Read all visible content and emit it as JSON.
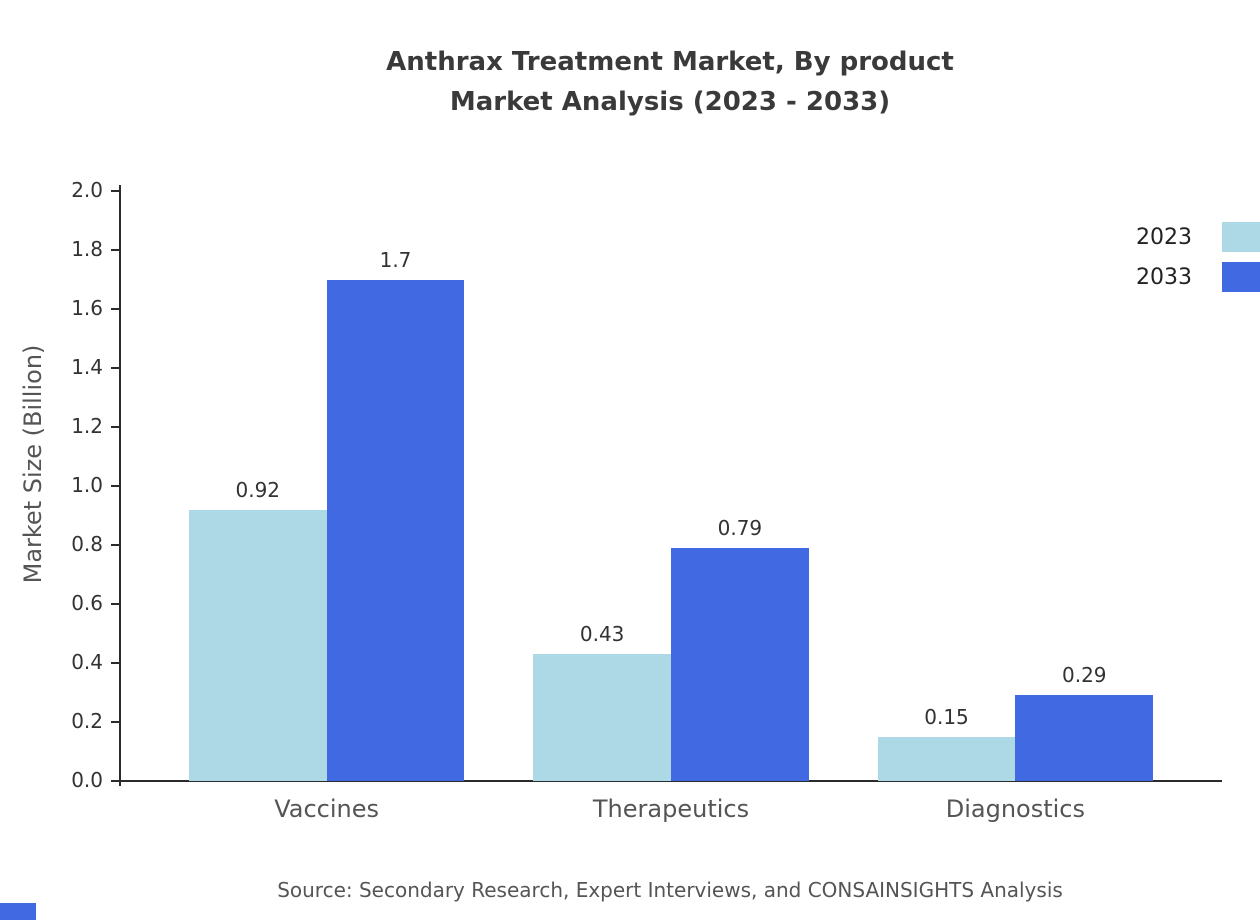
{
  "chart_data": {
    "type": "bar",
    "title": "Anthrax Treatment Market, By product Market Analysis (2023 - 2033)",
    "title_lines": [
      "Anthrax Treatment Market, By product",
      "Market Analysis (2023 - 2033)"
    ],
    "categories": [
      "Vaccines",
      "Therapeutics",
      "Diagnostics"
    ],
    "series": [
      {
        "name": "2023",
        "color": "#add8e6",
        "values": [
          0.92,
          0.43,
          0.15
        ],
        "labels": [
          "0.92",
          "0.43",
          "0.15"
        ]
      },
      {
        "name": "2033",
        "color": "#4169e1",
        "values": [
          1.7,
          0.79,
          0.29
        ],
        "labels": [
          "1.7",
          "0.79",
          "0.29"
        ]
      }
    ],
    "xlabel": "",
    "ylabel": "Market Size (Billion)",
    "ylim": [
      0.0,
      2.0
    ],
    "ytick_step": 0.2,
    "yticks": [
      "0.0",
      "0.2",
      "0.4",
      "0.6",
      "0.8",
      "1.0",
      "1.2",
      "1.4",
      "1.6",
      "1.8",
      "2.0"
    ],
    "grid": false,
    "legend_position": "top-right",
    "source": "Source: Secondary Research, Expert Interviews, and CONSAINSIGHTS Analysis"
  },
  "colors": {
    "title": "#3a3a3a",
    "axis": "#2b2b2b",
    "tick_label": "#333333",
    "category_label": "#555555",
    "source": "#555555",
    "accent_2023": "#add8e6",
    "accent_2033": "#4169e1"
  }
}
